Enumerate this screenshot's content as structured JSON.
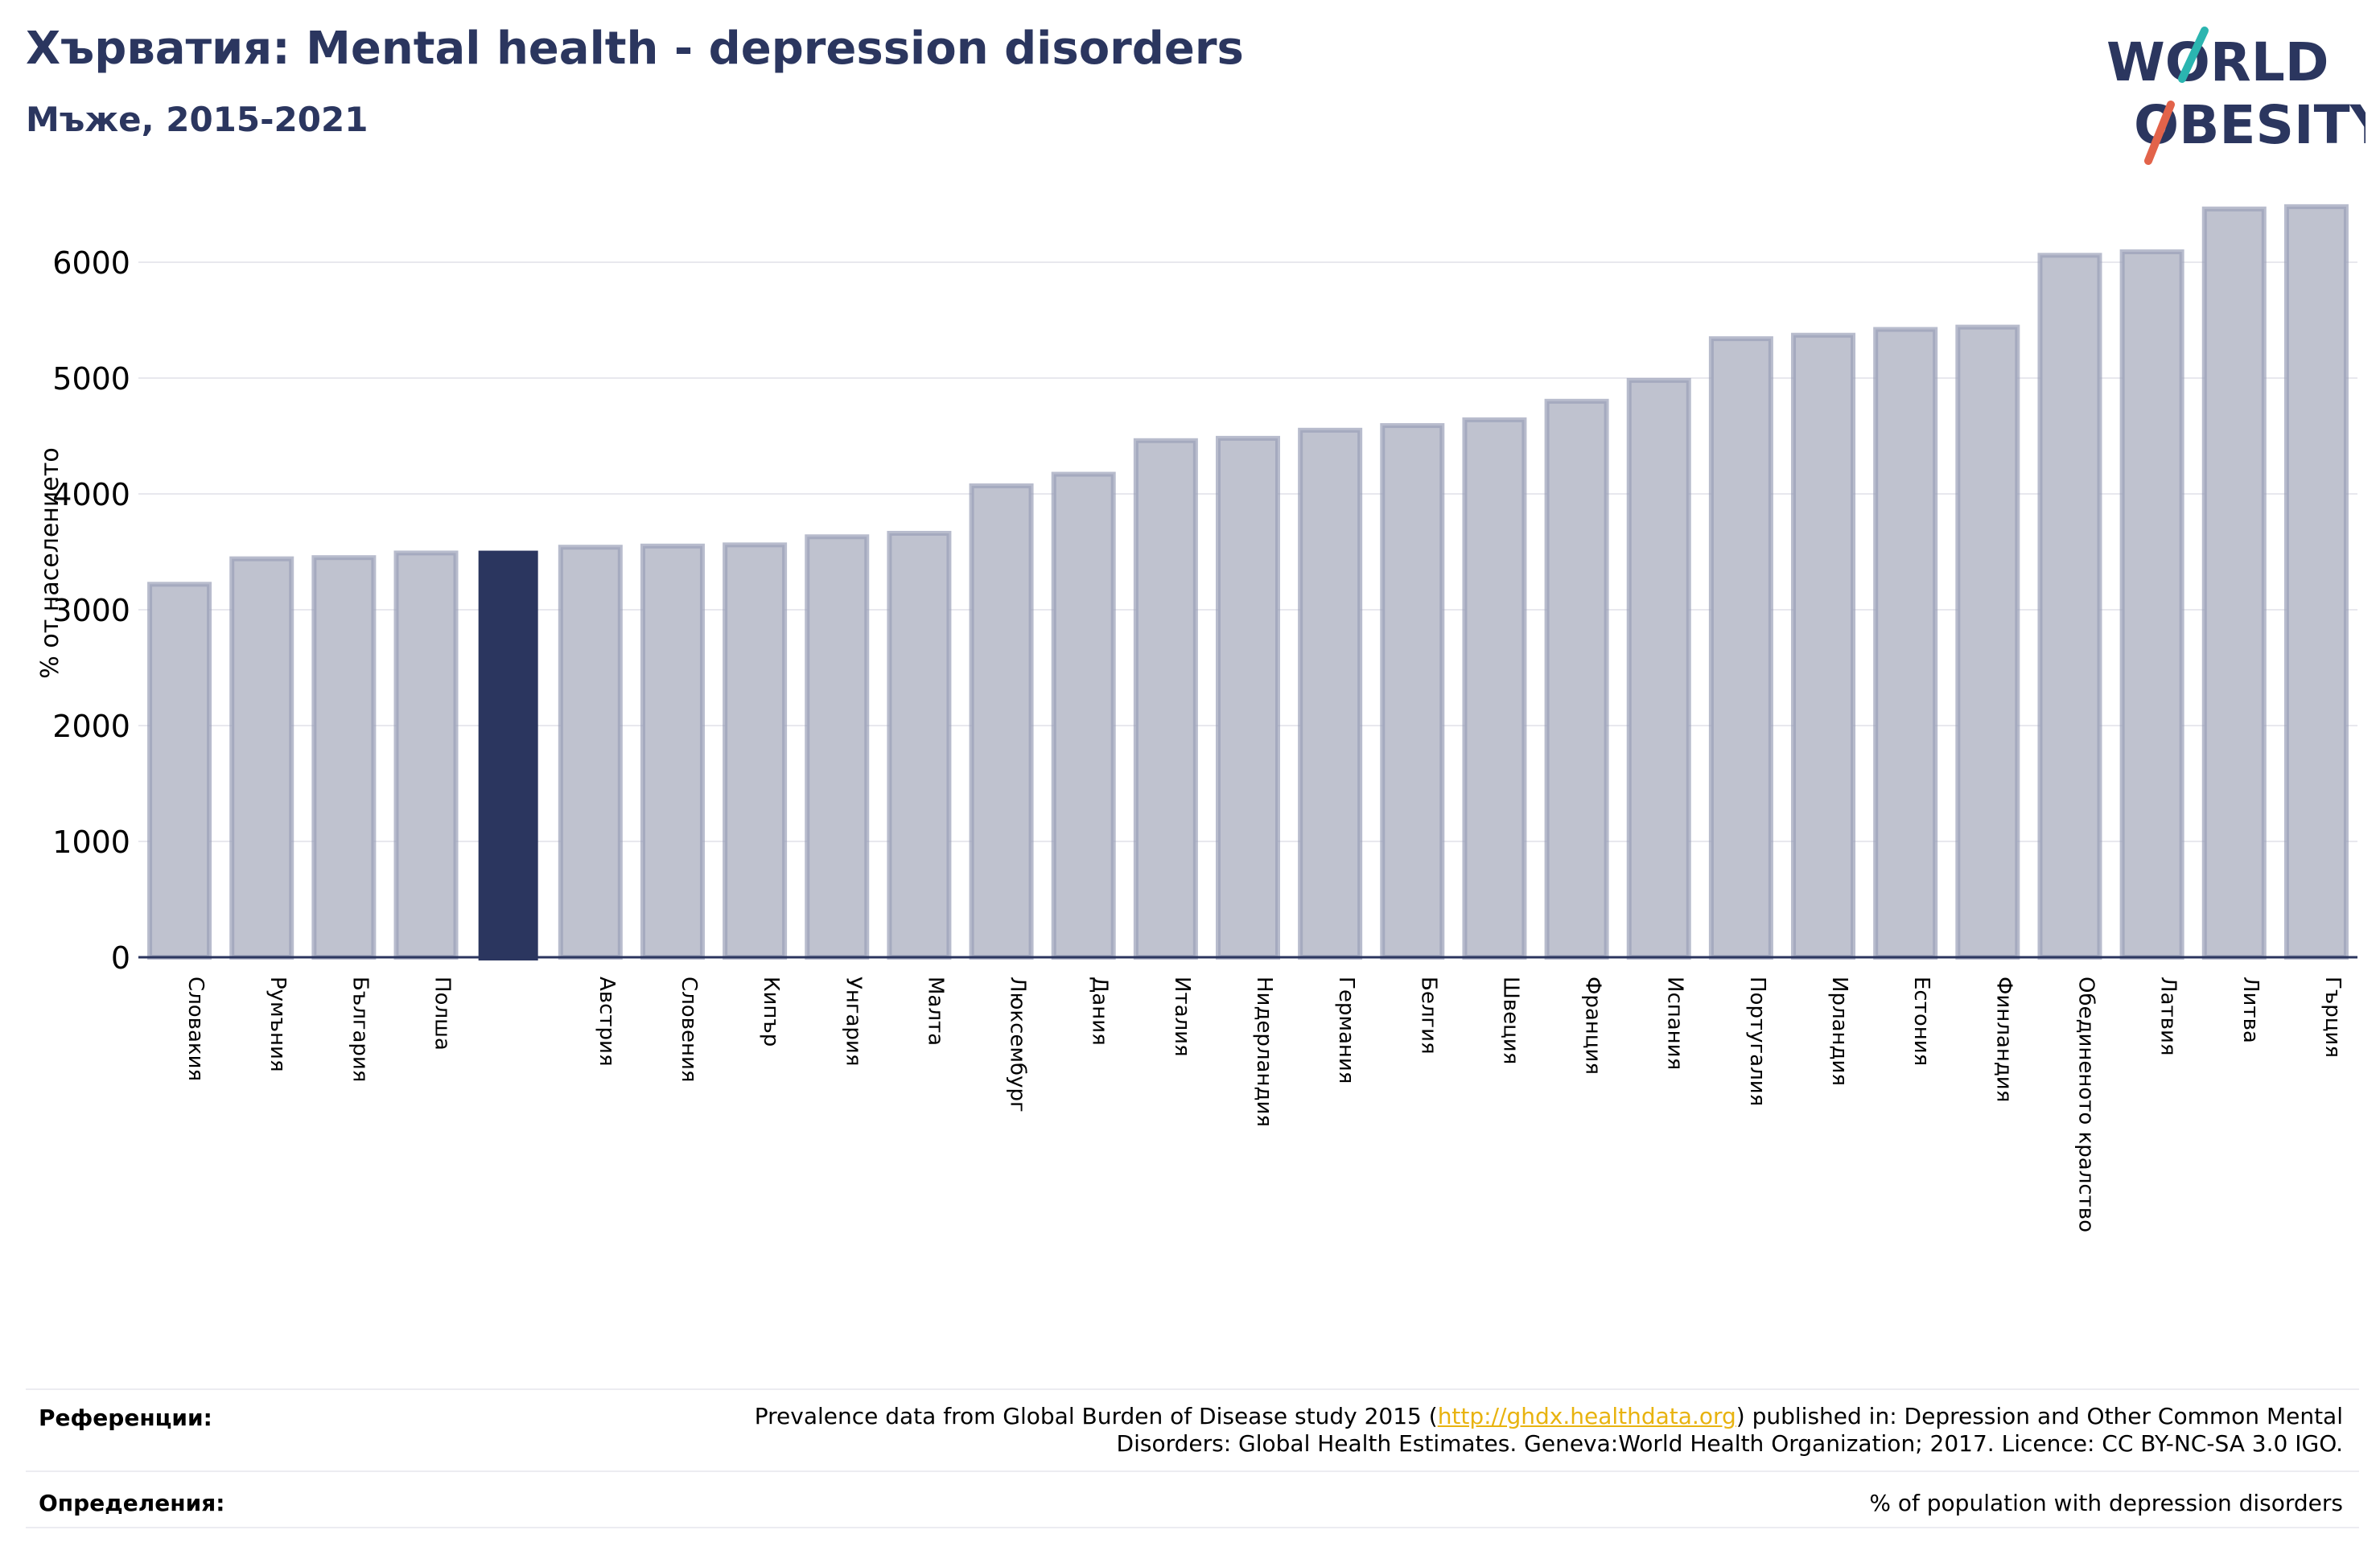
{
  "header": {
    "title": "Хърватия: Mental health - depression disorders",
    "subtitle": "Мъже, 2015-2021"
  },
  "logo": {
    "line1": "WORLD",
    "line2": "OBESITY",
    "accent_colors": [
      "#2bb5b0",
      "#e2634a"
    ],
    "text_color": "#2b365f"
  },
  "colors": {
    "bar_default": "#bfc2cf",
    "bar_border": "#9a9fb8",
    "bar_highlight": "#2b365f",
    "axis": "#2b365f",
    "grid": "#e8e8ee"
  },
  "chart_data": {
    "type": "bar",
    "ylabel": "% от населението",
    "ylim": [
      0,
      6800
    ],
    "yticks": [
      0,
      1000,
      2000,
      3000,
      4000,
      5000,
      6000
    ],
    "grid": true,
    "highlight_index": 4,
    "categories": [
      "Словакия",
      "Румъния",
      "България",
      "Полша",
      "",
      "Австрия",
      "Словения",
      "Кипър",
      "Унгария",
      "Малта",
      "Люксембург",
      "Дания",
      "Италия",
      "Нидерландия",
      "Германия",
      "Белгия",
      "Швеция",
      "Франция",
      "Испания",
      "Португалия",
      "Ирландия",
      "Естония",
      "Финландия",
      "Обединеното кралство",
      "Латвия",
      "Литва",
      "Гърция"
    ],
    "values": [
      3220,
      3440,
      3450,
      3490,
      3510,
      3540,
      3550,
      3560,
      3630,
      3660,
      4070,
      4170,
      4460,
      4480,
      4550,
      4590,
      4640,
      4800,
      4980,
      5340,
      5370,
      5420,
      5440,
      6060,
      6090,
      6460,
      6480
    ]
  },
  "footer": {
    "references_label": "Референции:",
    "references_text_before": "Prevalence data from Global Burden of Disease study 2015 (",
    "references_link": "http://ghdx.healthdata.org",
    "references_text_after": ") published in: Depression and Other Common Mental",
    "references_line2": "Disorders: Global Health Estimates. Geneva:World Health Organization; 2017. Licence: CC BY-NC-SA 3.0 IGO.",
    "definitions_label": "Определения:",
    "definitions_text": "% of population with depression disorders"
  }
}
